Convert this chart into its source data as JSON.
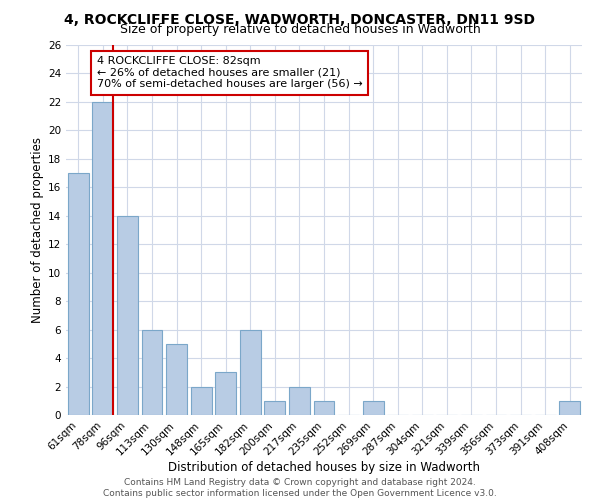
{
  "title": "4, ROCKCLIFFE CLOSE, WADWORTH, DONCASTER, DN11 9SD",
  "subtitle": "Size of property relative to detached houses in Wadworth",
  "xlabel": "Distribution of detached houses by size in Wadworth",
  "ylabel": "Number of detached properties",
  "bin_labels": [
    "61sqm",
    "78sqm",
    "96sqm",
    "113sqm",
    "130sqm",
    "148sqm",
    "165sqm",
    "182sqm",
    "200sqm",
    "217sqm",
    "235sqm",
    "252sqm",
    "269sqm",
    "287sqm",
    "304sqm",
    "321sqm",
    "339sqm",
    "356sqm",
    "373sqm",
    "391sqm",
    "408sqm"
  ],
  "bar_values": [
    17,
    22,
    14,
    6,
    5,
    2,
    3,
    6,
    1,
    2,
    1,
    0,
    1,
    0,
    0,
    0,
    0,
    0,
    0,
    0,
    1
  ],
  "bar_color": "#b8cce4",
  "bar_edge_color": "#7ba7c9",
  "highlight_color": "#cc0000",
  "annotation_title": "4 ROCKCLIFFE CLOSE: 82sqm",
  "annotation_line1": "← 26% of detached houses are smaller (21)",
  "annotation_line2": "70% of semi-detached houses are larger (56) →",
  "annotation_box_color": "#ffffff",
  "annotation_box_edge": "#cc0000",
  "ylim": [
    0,
    26
  ],
  "yticks": [
    0,
    2,
    4,
    6,
    8,
    10,
    12,
    14,
    16,
    18,
    20,
    22,
    24,
    26
  ],
  "footer_line1": "Contains HM Land Registry data © Crown copyright and database right 2024.",
  "footer_line2": "Contains public sector information licensed under the Open Government Licence v3.0.",
  "bg_color": "#ffffff",
  "grid_color": "#d0d8e8",
  "title_fontsize": 10,
  "subtitle_fontsize": 9,
  "axis_label_fontsize": 8.5,
  "tick_fontsize": 7.5,
  "annotation_fontsize": 8,
  "footer_fontsize": 6.5
}
